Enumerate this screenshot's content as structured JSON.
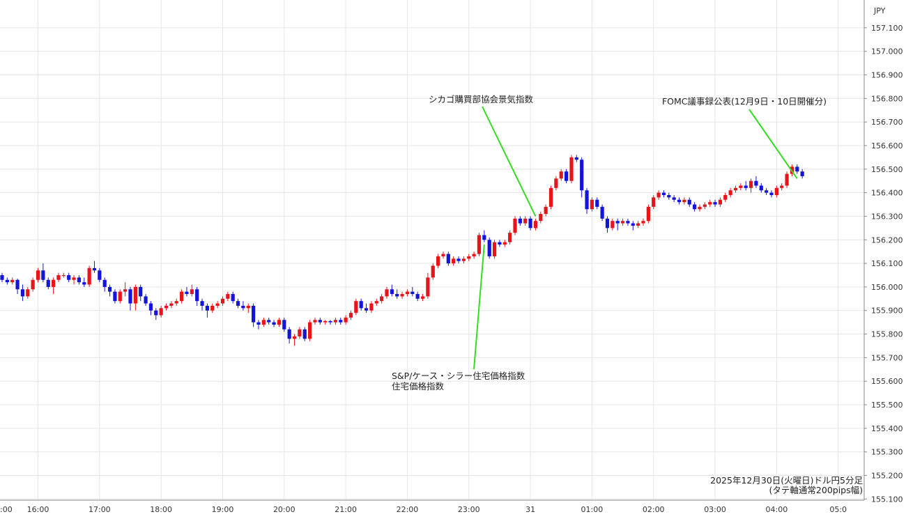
{
  "chart_data": {
    "type": "candlestick",
    "currency_label": "JPY",
    "caption_lines": [
      "2025年12月30日(火曜日)ドル円5分足",
      "(タテ軸通常200pips幅)"
    ],
    "y_ticks": [
      "157.100",
      "157.000",
      "156.900",
      "156.800",
      "156.700",
      "156.600",
      "156.500",
      "156.400",
      "156.300",
      "156.200",
      "156.100",
      "156.000",
      "155.900",
      "155.800",
      "155.700",
      "155.600",
      "155.500",
      "155.400",
      "155.300",
      "155.200",
      "155.100"
    ],
    "ylim": [
      155.095,
      157.135
    ],
    "x_ticks": [
      {
        "label": ":00",
        "slot": -5
      },
      {
        "label": "16:00",
        "slot": 7
      },
      {
        "label": "17:00",
        "slot": 19
      },
      {
        "label": "18:00",
        "slot": 31
      },
      {
        "label": "19:00",
        "slot": 43
      },
      {
        "label": "20:00",
        "slot": 55
      },
      {
        "label": "21:00",
        "slot": 67
      },
      {
        "label": "22:00",
        "slot": 79
      },
      {
        "label": "23:00",
        "slot": 91
      },
      {
        "label": "31",
        "slot": 103
      },
      {
        "label": "01:00",
        "slot": 115
      },
      {
        "label": "02:00",
        "slot": 127
      },
      {
        "label": "03:00",
        "slot": 139
      },
      {
        "label": "04:00",
        "slot": 151
      },
      {
        "label": "05:0",
        "slot": 163
      }
    ],
    "annotations": [
      {
        "lines": [
          "シカゴ購買部協会景気指数"
        ],
        "slot": 104,
        "price": 156.3
      },
      {
        "lines": [
          "FOMC議事録公表(12月9日・10日開催分)"
        ],
        "slot": 155,
        "price": 156.46
      },
      {
        "lines": [
          "S&P/ケース・シラー住宅価格指数",
          "住宅価格指数"
        ],
        "slot": 94,
        "price": 156.18
      }
    ],
    "colors": {
      "up": "#e8141b",
      "down": "#1414d8",
      "annotation_line": "#33dd22",
      "grid": "#e6e6e6"
    },
    "candles": [
      [
        156.05,
        156.06,
        156.02,
        156.03
      ],
      [
        156.03,
        156.04,
        156.01,
        156.02
      ],
      [
        156.02,
        156.04,
        156.01,
        156.03
      ],
      [
        156.03,
        156.035,
        155.97,
        155.99
      ],
      [
        155.99,
        156.01,
        155.94,
        155.96
      ],
      [
        155.96,
        156.0,
        155.95,
        155.99
      ],
      [
        155.99,
        156.04,
        155.98,
        156.03
      ],
      [
        156.03,
        156.08,
        156.02,
        156.07
      ],
      [
        156.07,
        156.1,
        156.02,
        156.03
      ],
      [
        156.03,
        156.04,
        155.99,
        156.0
      ],
      [
        156.0,
        156.04,
        155.97,
        156.03
      ],
      [
        156.03,
        156.06,
        156.02,
        156.05
      ],
      [
        156.05,
        156.06,
        156.04,
        156.05
      ],
      [
        156.05,
        156.06,
        156.02,
        156.03
      ],
      [
        156.03,
        156.05,
        156.01,
        156.04
      ],
      [
        156.04,
        156.05,
        156.01,
        156.02
      ],
      [
        156.02,
        156.04,
        156.0,
        156.01
      ],
      [
        156.01,
        156.09,
        156.0,
        156.08
      ],
      [
        156.08,
        156.11,
        156.06,
        156.07
      ],
      [
        156.07,
        156.08,
        156.02,
        156.03
      ],
      [
        156.03,
        156.04,
        155.98,
        156.0
      ],
      [
        156.0,
        156.01,
        155.96,
        155.98
      ],
      [
        155.98,
        155.99,
        155.93,
        155.94
      ],
      [
        155.94,
        155.99,
        155.93,
        155.98
      ],
      [
        155.98,
        156.02,
        155.96,
        155.99
      ],
      [
        155.99,
        156.0,
        155.9,
        155.93
      ],
      [
        155.93,
        156.01,
        155.9,
        156.0
      ],
      [
        156.0,
        156.01,
        155.94,
        155.96
      ],
      [
        155.96,
        155.97,
        155.92,
        155.93
      ],
      [
        155.93,
        155.94,
        155.88,
        155.9
      ],
      [
        155.9,
        155.91,
        155.86,
        155.88
      ],
      [
        155.88,
        155.92,
        155.87,
        155.91
      ],
      [
        155.91,
        155.93,
        155.9,
        155.92
      ],
      [
        155.92,
        155.94,
        155.91,
        155.93
      ],
      [
        155.93,
        155.95,
        155.92,
        155.94
      ],
      [
        155.94,
        155.99,
        155.93,
        155.98
      ],
      [
        155.98,
        156.0,
        155.96,
        155.97
      ],
      [
        155.97,
        156.01,
        155.96,
        155.99
      ],
      [
        155.99,
        156.0,
        155.92,
        155.94
      ],
      [
        155.94,
        155.95,
        155.9,
        155.92
      ],
      [
        155.92,
        155.93,
        155.87,
        155.9
      ],
      [
        155.9,
        155.93,
        155.89,
        155.92
      ],
      [
        155.92,
        155.94,
        155.91,
        155.93
      ],
      [
        155.93,
        155.96,
        155.92,
        155.95
      ],
      [
        155.95,
        155.98,
        155.94,
        155.97
      ],
      [
        155.97,
        155.98,
        155.93,
        155.94
      ],
      [
        155.94,
        155.95,
        155.91,
        155.92
      ],
      [
        155.92,
        155.94,
        155.9,
        155.91
      ],
      [
        155.91,
        155.93,
        155.89,
        155.92
      ],
      [
        155.92,
        155.93,
        155.83,
        155.85
      ],
      [
        155.85,
        155.86,
        155.82,
        155.84
      ],
      [
        155.84,
        155.87,
        155.83,
        155.86
      ],
      [
        155.86,
        155.87,
        155.84,
        155.85
      ],
      [
        155.85,
        155.86,
        155.83,
        155.84
      ],
      [
        155.84,
        155.87,
        155.83,
        155.86
      ],
      [
        155.86,
        155.87,
        155.81,
        155.82
      ],
      [
        155.82,
        155.83,
        155.76,
        155.78
      ],
      [
        155.78,
        155.8,
        155.75,
        155.79
      ],
      [
        155.79,
        155.83,
        155.78,
        155.82
      ],
      [
        155.82,
        155.83,
        155.77,
        155.78
      ],
      [
        155.78,
        155.86,
        155.77,
        155.85
      ],
      [
        155.85,
        155.87,
        155.84,
        155.86
      ],
      [
        155.86,
        155.87,
        155.84,
        155.85
      ],
      [
        155.85,
        155.86,
        155.84,
        155.855
      ],
      [
        155.855,
        155.86,
        155.84,
        155.85
      ],
      [
        155.85,
        155.87,
        155.84,
        155.86
      ],
      [
        155.86,
        155.87,
        155.84,
        155.85
      ],
      [
        155.85,
        155.88,
        155.84,
        155.87
      ],
      [
        155.87,
        155.9,
        155.86,
        155.89
      ],
      [
        155.89,
        155.95,
        155.88,
        155.94
      ],
      [
        155.94,
        155.95,
        155.9,
        155.91
      ],
      [
        155.91,
        155.93,
        155.89,
        155.9
      ],
      [
        155.9,
        155.94,
        155.89,
        155.93
      ],
      [
        155.93,
        155.95,
        155.92,
        155.94
      ],
      [
        155.94,
        155.97,
        155.93,
        155.96
      ],
      [
        155.96,
        156.0,
        155.95,
        155.99
      ],
      [
        155.99,
        156.01,
        155.96,
        155.97
      ],
      [
        155.97,
        155.99,
        155.95,
        155.96
      ],
      [
        155.96,
        155.98,
        155.95,
        155.97
      ],
      [
        155.97,
        155.99,
        155.96,
        155.98
      ],
      [
        155.98,
        156.0,
        155.96,
        155.97
      ],
      [
        155.97,
        155.98,
        155.94,
        155.95
      ],
      [
        155.95,
        155.97,
        155.94,
        155.96
      ],
      [
        155.96,
        156.06,
        155.95,
        156.04
      ],
      [
        156.04,
        156.1,
        156.03,
        156.09
      ],
      [
        156.09,
        156.14,
        156.08,
        156.13
      ],
      [
        156.13,
        156.15,
        156.12,
        156.14
      ],
      [
        156.14,
        156.15,
        156.09,
        156.1
      ],
      [
        156.1,
        156.13,
        156.09,
        156.12
      ],
      [
        156.12,
        156.13,
        156.1,
        156.11
      ],
      [
        156.11,
        156.13,
        156.1,
        156.12
      ],
      [
        156.12,
        156.14,
        156.11,
        156.13
      ],
      [
        156.13,
        156.15,
        156.12,
        156.14
      ],
      [
        156.14,
        156.23,
        156.13,
        156.22
      ],
      [
        156.22,
        156.24,
        156.19,
        156.2
      ],
      [
        156.2,
        156.21,
        156.12,
        156.13
      ],
      [
        156.13,
        156.2,
        156.12,
        156.19
      ],
      [
        156.19,
        156.2,
        156.17,
        156.18
      ],
      [
        156.18,
        156.2,
        156.17,
        156.19
      ],
      [
        156.19,
        156.24,
        156.18,
        156.23
      ],
      [
        156.23,
        156.3,
        156.22,
        156.29
      ],
      [
        156.29,
        156.3,
        156.26,
        156.27
      ],
      [
        156.27,
        156.3,
        156.26,
        156.29
      ],
      [
        156.29,
        156.3,
        156.24,
        156.25
      ],
      [
        156.25,
        156.29,
        156.24,
        156.28
      ],
      [
        156.28,
        156.32,
        156.27,
        156.31
      ],
      [
        156.31,
        156.35,
        156.3,
        156.34
      ],
      [
        156.34,
        156.43,
        156.33,
        156.42
      ],
      [
        156.42,
        156.47,
        156.41,
        156.46
      ],
      [
        156.46,
        156.5,
        156.45,
        156.49
      ],
      [
        156.49,
        156.5,
        156.44,
        156.45
      ],
      [
        156.45,
        156.56,
        156.44,
        156.55
      ],
      [
        156.55,
        156.56,
        156.53,
        156.54
      ],
      [
        156.54,
        156.55,
        156.38,
        156.41
      ],
      [
        156.41,
        156.42,
        156.31,
        156.33
      ],
      [
        156.33,
        156.38,
        156.32,
        156.37
      ],
      [
        156.37,
        156.38,
        156.33,
        156.34
      ],
      [
        156.34,
        156.35,
        156.28,
        156.29
      ],
      [
        156.29,
        156.3,
        156.23,
        156.25
      ],
      [
        156.25,
        156.29,
        156.24,
        156.28
      ],
      [
        156.28,
        156.29,
        156.24,
        156.27
      ],
      [
        156.27,
        156.29,
        156.26,
        156.28
      ],
      [
        156.28,
        156.29,
        156.26,
        156.27
      ],
      [
        156.27,
        156.28,
        156.24,
        156.26
      ],
      [
        156.26,
        156.28,
        156.25,
        156.27
      ],
      [
        156.27,
        156.29,
        156.26,
        156.28
      ],
      [
        156.28,
        156.35,
        156.27,
        156.34
      ],
      [
        156.34,
        156.39,
        156.33,
        156.38
      ],
      [
        156.38,
        156.41,
        156.37,
        156.4
      ],
      [
        156.4,
        156.41,
        156.38,
        156.39
      ],
      [
        156.39,
        156.4,
        156.37,
        156.38
      ],
      [
        156.38,
        156.39,
        156.36,
        156.37
      ],
      [
        156.37,
        156.38,
        156.35,
        156.36
      ],
      [
        156.36,
        156.38,
        156.35,
        156.37
      ],
      [
        156.37,
        156.38,
        156.34,
        156.35
      ],
      [
        156.35,
        156.36,
        156.32,
        156.33
      ],
      [
        156.33,
        156.35,
        156.32,
        156.34
      ],
      [
        156.34,
        156.36,
        156.33,
        156.35
      ],
      [
        156.35,
        156.37,
        156.34,
        156.36
      ],
      [
        156.36,
        156.37,
        156.34,
        156.35
      ],
      [
        156.35,
        156.38,
        156.34,
        156.37
      ],
      [
        156.37,
        156.4,
        156.36,
        156.39
      ],
      [
        156.39,
        156.42,
        156.38,
        156.41
      ],
      [
        156.41,
        156.43,
        156.4,
        156.42
      ],
      [
        156.42,
        156.44,
        156.41,
        156.43
      ],
      [
        156.43,
        156.45,
        156.41,
        156.42
      ],
      [
        156.42,
        156.46,
        156.4,
        156.45
      ],
      [
        156.45,
        156.47,
        156.42,
        156.43
      ],
      [
        156.43,
        156.44,
        156.4,
        156.41
      ],
      [
        156.41,
        156.42,
        156.39,
        156.4
      ],
      [
        156.4,
        156.41,
        156.38,
        156.39
      ],
      [
        156.39,
        156.43,
        156.38,
        156.42
      ],
      [
        156.42,
        156.44,
        156.41,
        156.43
      ],
      [
        156.43,
        156.49,
        156.42,
        156.48
      ],
      [
        156.48,
        156.52,
        156.47,
        156.51
      ],
      [
        156.51,
        156.52,
        156.48,
        156.49
      ],
      [
        156.49,
        156.5,
        156.46,
        156.47
      ]
    ]
  }
}
